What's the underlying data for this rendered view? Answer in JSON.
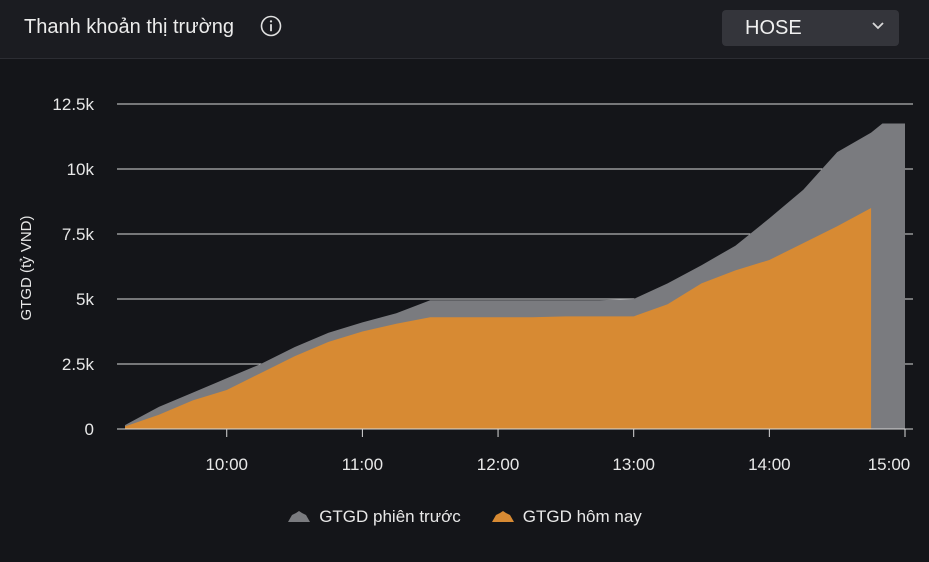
{
  "header": {
    "title": "Thanh khoản thị trường",
    "icon": "info-icon",
    "exchange_select": {
      "value": "HOSE",
      "icon": "chevron-down-icon"
    }
  },
  "chart_data": {
    "type": "area",
    "ylabel": "GTGD (tỷ VND)",
    "xlabel": "",
    "x_ticks": [
      "10:00",
      "11:00",
      "12:00",
      "13:00",
      "14:00",
      "15:00"
    ],
    "y_ticks": [
      "0",
      "2.5k",
      "5k",
      "7.5k",
      "10k",
      "12.5k"
    ],
    "y_tick_values": [
      0,
      2500,
      5000,
      7500,
      10000,
      12500
    ],
    "ylim": [
      0,
      12500
    ],
    "x_range": [
      "09:15",
      "15:00"
    ],
    "grid": true,
    "legend_position": "bottom",
    "series": [
      {
        "name": "GTGD phiên trước",
        "color": "#7a7b7f",
        "x": [
          "09:15",
          "09:30",
          "09:45",
          "10:00",
          "10:15",
          "10:30",
          "10:45",
          "11:00",
          "11:15",
          "11:30",
          "11:45",
          "12:00",
          "12:15",
          "12:30",
          "12:45",
          "13:00",
          "13:15",
          "13:30",
          "13:45",
          "14:00",
          "14:15",
          "14:30",
          "14:45",
          "14:50",
          "15:00"
        ],
        "values": [
          150,
          850,
          1400,
          1950,
          2500,
          3150,
          3700,
          4100,
          4450,
          4950,
          4950,
          4950,
          4950,
          4950,
          4950,
          5000,
          5600,
          6300,
          7050,
          8100,
          9200,
          10650,
          11400,
          11750,
          11750
        ]
      },
      {
        "name": "GTGD hôm nay",
        "color": "#d78a33",
        "x": [
          "09:15",
          "09:30",
          "09:45",
          "10:00",
          "10:15",
          "10:30",
          "10:45",
          "11:00",
          "11:15",
          "11:30",
          "11:45",
          "12:00",
          "12:15",
          "12:30",
          "12:45",
          "13:00",
          "13:15",
          "13:30",
          "13:45",
          "14:00",
          "14:15",
          "14:30",
          "14:45"
        ],
        "values": [
          100,
          550,
          1100,
          1500,
          2150,
          2800,
          3350,
          3750,
          4050,
          4300,
          4300,
          4300,
          4300,
          4330,
          4330,
          4330,
          4800,
          5600,
          6100,
          6500,
          7150,
          7800,
          8500
        ]
      }
    ]
  }
}
